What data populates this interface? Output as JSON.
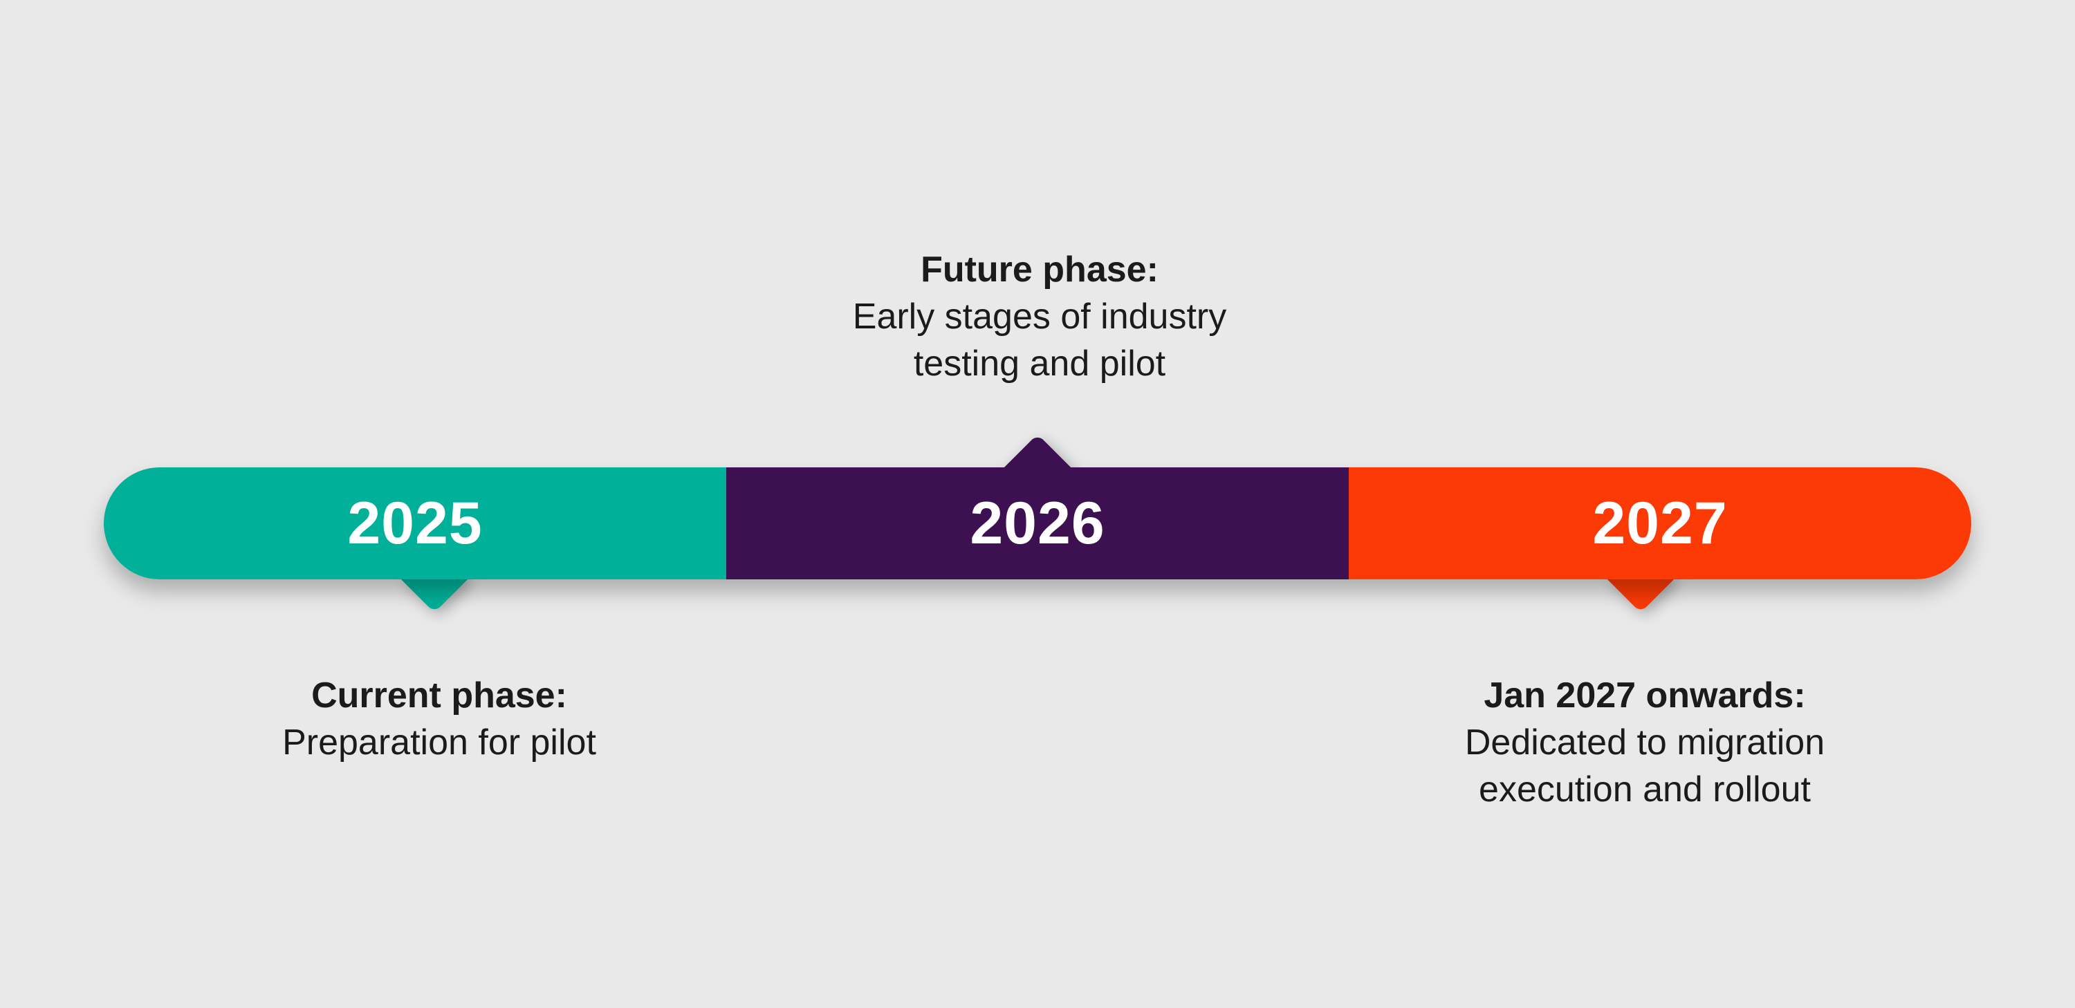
{
  "canvas": {
    "background_color": "#e9e9e9",
    "text_color": "#1b1b1b"
  },
  "timeline": {
    "year_text_color": "#ffffff",
    "segments": [
      {
        "year": "2025",
        "color": "#00b098",
        "pointer": "down"
      },
      {
        "year": "2026",
        "color": "#3d1151",
        "pointer": "up"
      },
      {
        "year": "2027",
        "color": "#fb3a05",
        "pointer": "down"
      }
    ]
  },
  "annotations": {
    "future": {
      "title": "Future phase:",
      "line1": "Early stages of industry",
      "line2": "testing and pilot"
    },
    "current": {
      "title": "Current phase:",
      "line1": "Preparation for pilot"
    },
    "jan2027": {
      "title": "Jan 2027 onwards:",
      "line1": "Dedicated to migration",
      "line2": "execution and rollout"
    }
  }
}
